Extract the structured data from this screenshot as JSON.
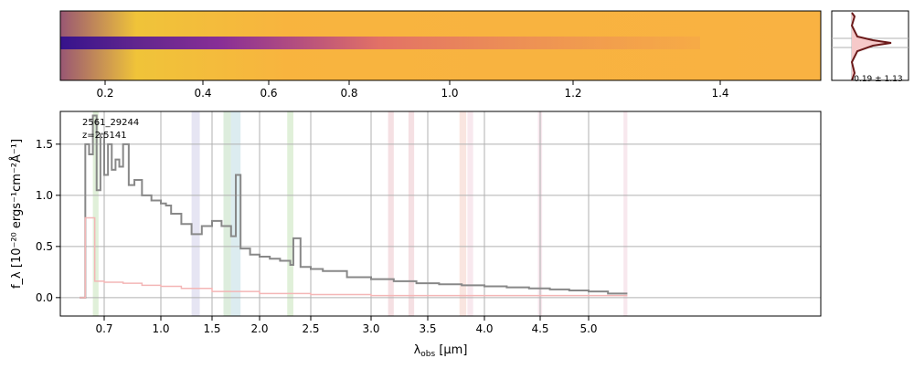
{
  "chart_data": [
    {
      "type": "heatmap",
      "panel": "2d-spectrum",
      "colormap": "plasma",
      "x_ticks": [
        "0.2",
        "0.4",
        "0.6",
        "0.8",
        "1.0",
        "1.2",
        "1.4"
      ],
      "x_tick_values": [
        0.2,
        0.4,
        0.6,
        0.8,
        1.0,
        1.2,
        1.4
      ],
      "grid": false
    },
    {
      "type": "line",
      "panel": "spatial-profile",
      "annotation": "-0.19 ± 1.13",
      "grid": true
    },
    {
      "type": "line",
      "panel": "1d-spectrum",
      "title": "",
      "annotation_id": "2561_29244",
      "annotation_z": "z=2.5141",
      "xlabel_main": "λ",
      "xlabel_sub": "obs",
      "xlabel_unit": " [μm]",
      "ylabel": "f_λ [10⁻²⁰ ergs⁻¹cm⁻²Å⁻¹]",
      "xlim": [
        0.54,
        5.4
      ],
      "ylim": [
        -0.18,
        1.82
      ],
      "x_ticks": [
        "0.7",
        "1.0",
        "1.5",
        "2.0",
        "2.5",
        "3.0",
        "3.5",
        "4.0",
        "4.5",
        "5.0"
      ],
      "x_tick_values": [
        0.7,
        1.0,
        1.5,
        2.0,
        2.5,
        3.0,
        3.5,
        4.0,
        4.5,
        5.0
      ],
      "y_ticks": [
        "0.0",
        "0.5",
        "1.0",
        "1.5"
      ],
      "y_tick_values": [
        0.0,
        0.5,
        1.0,
        1.5
      ],
      "grid": true,
      "series": [
        {
          "color": "#888888",
          "x": [
            0.57,
            0.6,
            0.62,
            0.64,
            0.66,
            0.68,
            0.7,
            0.72,
            0.74,
            0.76,
            0.78,
            0.8,
            0.83,
            0.86,
            0.9,
            0.95,
            1.0,
            1.05,
            1.1,
            1.2,
            1.3,
            1.4,
            1.5,
            1.6,
            1.7,
            1.75,
            1.8,
            1.9,
            2.0,
            2.1,
            2.2,
            2.3,
            2.33,
            2.4,
            2.5,
            2.6,
            2.8,
            3.0,
            3.2,
            3.4,
            3.6,
            3.8,
            4.0,
            4.2,
            4.4,
            4.6,
            4.8,
            5.0,
            5.2,
            5.4
          ],
          "y": [
            0.0,
            1.5,
            1.4,
            1.78,
            1.05,
            1.6,
            1.2,
            1.5,
            1.25,
            1.35,
            1.28,
            1.5,
            1.1,
            1.15,
            1.0,
            0.95,
            0.92,
            0.9,
            0.82,
            0.72,
            0.62,
            0.7,
            0.75,
            0.7,
            0.6,
            1.2,
            0.48,
            0.42,
            0.4,
            0.38,
            0.36,
            0.32,
            0.58,
            0.3,
            0.28,
            0.26,
            0.2,
            0.18,
            0.16,
            0.14,
            0.13,
            0.12,
            0.11,
            0.1,
            0.09,
            0.08,
            0.07,
            0.06,
            0.04,
            0.04
          ]
        },
        {
          "color": "#f4b6b6",
          "x": [
            0.57,
            0.6,
            0.65,
            0.7,
            0.8,
            0.9,
            1.0,
            1.2,
            1.5,
            2.0,
            2.5,
            3.0,
            3.5,
            4.0,
            4.5,
            5.0,
            5.4
          ],
          "y": [
            0.0,
            0.78,
            0.16,
            0.15,
            0.14,
            0.12,
            0.11,
            0.09,
            0.06,
            0.04,
            0.03,
            0.02,
            0.02,
            0.02,
            0.02,
            0.02,
            0.02
          ]
        }
      ],
      "bands": [
        {
          "x0": 0.64,
          "x1": 0.67,
          "color": "#d8ecd0"
        },
        {
          "x0": 1.3,
          "x1": 1.38,
          "color": "#e0def0"
        },
        {
          "x0": 1.62,
          "x1": 1.7,
          "color": "#d5e9d5"
        },
        {
          "x0": 1.7,
          "x1": 1.8,
          "color": "#d3e7ec"
        },
        {
          "x0": 2.27,
          "x1": 2.33,
          "color": "#d8ecd0"
        },
        {
          "x0": 3.15,
          "x1": 3.2,
          "color": "#f2d8dc"
        },
        {
          "x0": 3.33,
          "x1": 3.38,
          "color": "#f2d8dc"
        },
        {
          "x0": 3.78,
          "x1": 3.84,
          "color": "#f8ded8"
        },
        {
          "x0": 3.85,
          "x1": 3.9,
          "color": "#f6e2ea"
        },
        {
          "x0": 4.48,
          "x1": 4.52,
          "color": "#f6e2ea"
        },
        {
          "x0": 5.36,
          "x1": 5.4,
          "color": "#f6e2ea"
        }
      ]
    }
  ]
}
